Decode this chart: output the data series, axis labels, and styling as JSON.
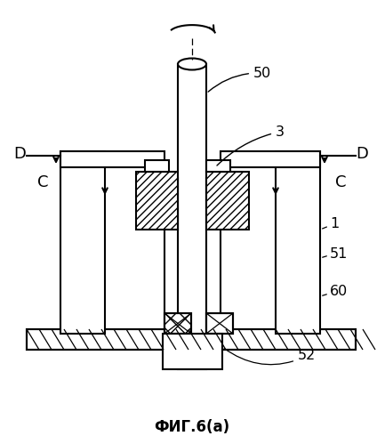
{
  "title": "ФИГ.6(a)",
  "bg_color": "#ffffff",
  "line_color": "#000000",
  "fig_width": 4.33,
  "fig_height": 4.99,
  "dpi": 100,
  "labels": {
    "D_left": "D",
    "D_right": "D",
    "C_left": "C",
    "C_right": "C",
    "n50": "50",
    "n3": "3",
    "n1": "1",
    "n51": "51",
    "n60": "60",
    "n52": "52"
  }
}
